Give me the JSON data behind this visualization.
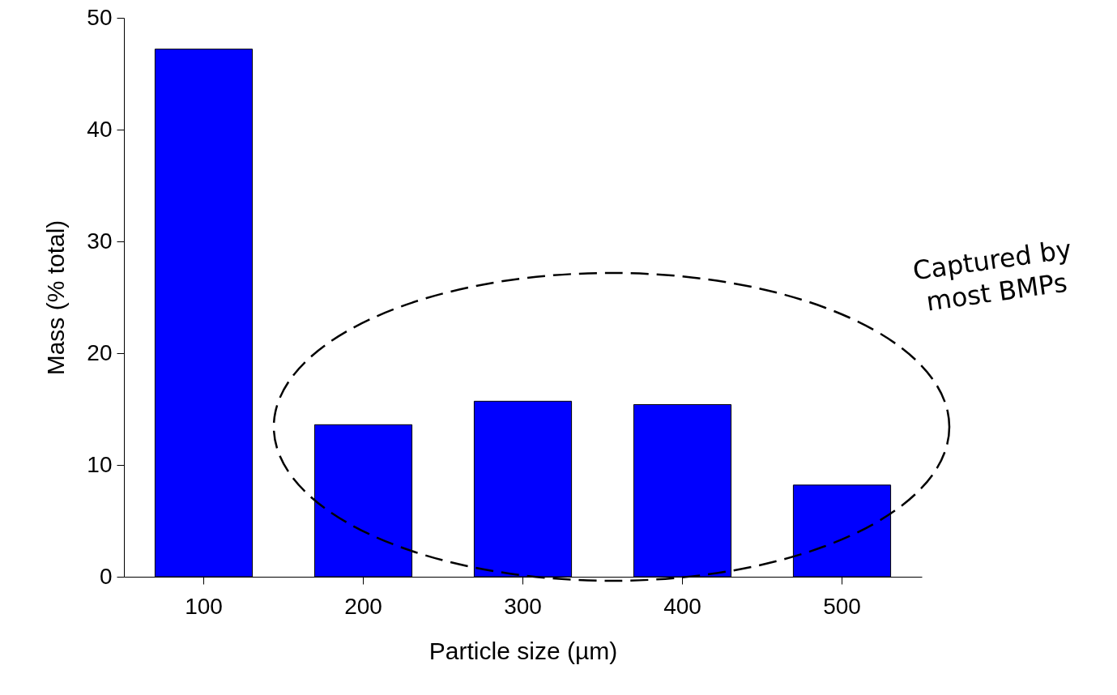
{
  "chart_data": {
    "type": "bar",
    "xlabel": "Particle size (µm)",
    "ylabel": "Mass (% total)",
    "categories": [
      "100",
      "200",
      "300",
      "400",
      "500"
    ],
    "values": [
      47.2,
      13.6,
      15.7,
      15.4,
      8.2
    ],
    "color": "#0000ff",
    "ylim": [
      0,
      50
    ],
    "yticks": [
      0,
      10,
      20,
      30,
      40,
      50
    ],
    "grid": false,
    "annotations": [
      "Captured by\nmost BMPs"
    ]
  }
}
